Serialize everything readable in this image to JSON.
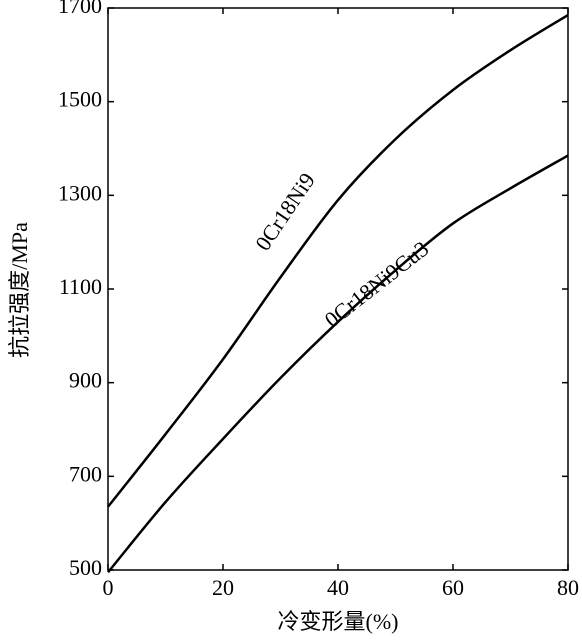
{
  "chart_data": {
    "type": "line",
    "x_label": "冷变形量(%)",
    "y_label": "抗拉强度/MPa",
    "x": [
      0,
      10,
      20,
      30,
      40,
      50,
      60,
      70,
      80
    ],
    "series": [
      {
        "name": "0Cr18Ni9",
        "color": "#000000",
        "values": [
          635,
          790,
          950,
          1125,
          1290,
          1420,
          1525,
          1610,
          1685
        ]
      },
      {
        "name": "0Cr18Ni9Cu3",
        "color": "#000000",
        "values": [
          495,
          645,
          780,
          910,
          1030,
          1140,
          1240,
          1315,
          1385
        ]
      }
    ],
    "xlim": [
      0,
      80
    ],
    "xticks": [
      0,
      20,
      40,
      60,
      80
    ],
    "ylim": [
      500,
      1700
    ],
    "yticks": [
      500,
      700,
      900,
      1100,
      1300,
      1500,
      1700
    ],
    "grid": false
  }
}
